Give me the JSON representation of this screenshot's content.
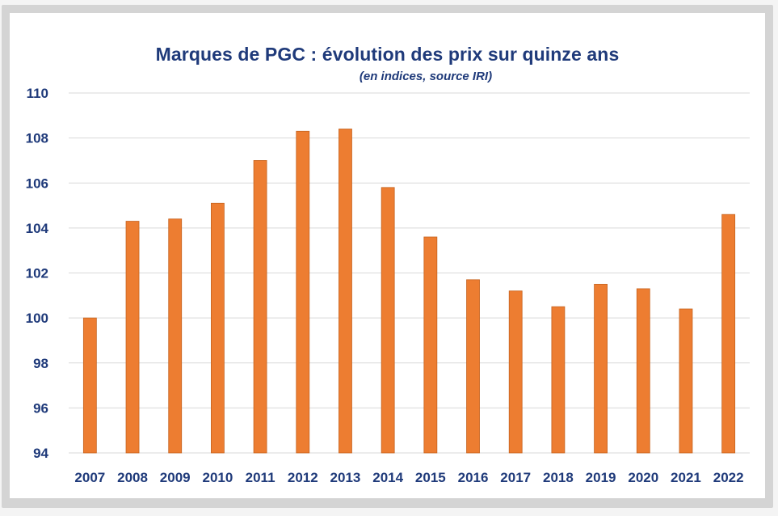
{
  "chart_data": {
    "type": "bar",
    "title": "Marques de PGC : évolution des prix sur quinze ans",
    "subtitle": "(en indices, source IRI)",
    "xlabel": "",
    "ylabel": "",
    "categories": [
      "2007",
      "2008",
      "2009",
      "2010",
      "2011",
      "2012",
      "2013",
      "2014",
      "2015",
      "2016",
      "2017",
      "2018",
      "2019",
      "2020",
      "2021",
      "2022"
    ],
    "values": [
      100.0,
      104.3,
      104.4,
      105.1,
      107.0,
      108.3,
      108.4,
      105.8,
      103.6,
      101.7,
      101.2,
      100.5,
      101.5,
      101.3,
      100.4,
      104.6
    ],
    "ylim": [
      94,
      110
    ],
    "yticks": [
      "94",
      "96",
      "98",
      "100",
      "102",
      "104",
      "106",
      "108",
      "110"
    ],
    "grid": true,
    "legend": "none",
    "colors": {
      "bar": "#ed7d31",
      "bar_edge": "#c5631f",
      "text": "#1f3a7a",
      "grid": "#d9d9d9"
    }
  }
}
